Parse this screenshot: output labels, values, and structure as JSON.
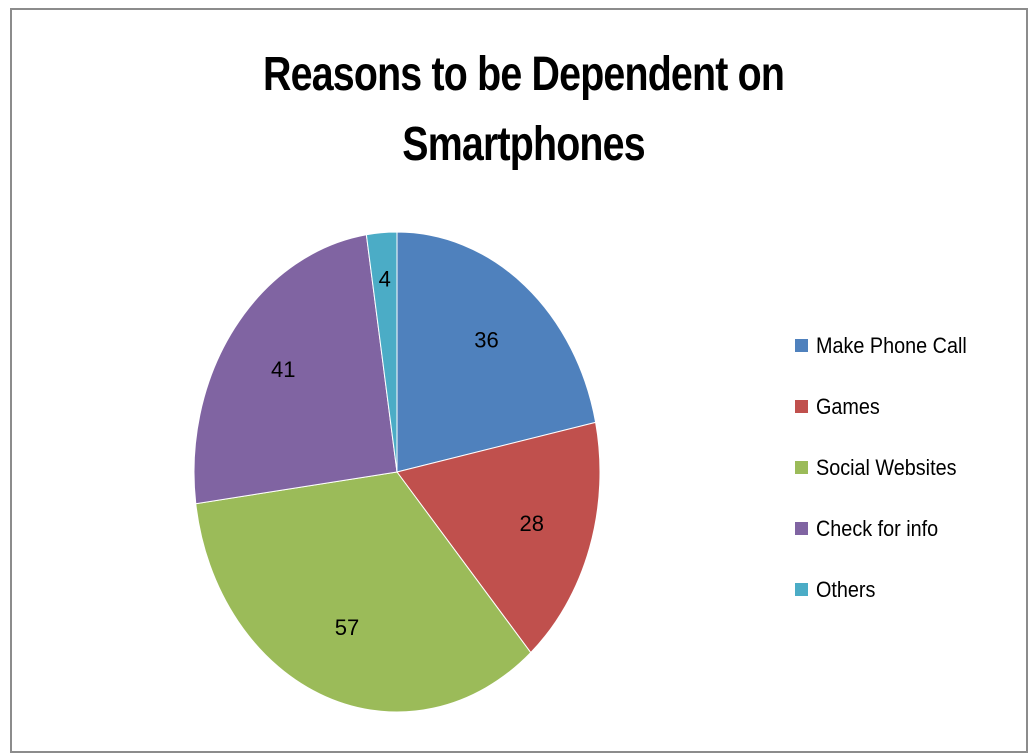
{
  "chart_data": {
    "type": "pie",
    "title": "Reasons to be Dependent on\nSmartphones",
    "categories": [
      "Make Phone Call",
      "Games",
      "Social Websites",
      "Check for info",
      "Others"
    ],
    "values": [
      36,
      28,
      57,
      41,
      4
    ],
    "colors": [
      "#4f81bd",
      "#c0504d",
      "#9bbb59",
      "#8064a2",
      "#4bacc6"
    ],
    "data_labels": [
      "36",
      "28",
      "57",
      "41",
      "4"
    ],
    "legend": {
      "position": "right",
      "entries": [
        "Make Phone Call",
        "Games",
        "Social Websites",
        "Check for info",
        "Others"
      ]
    }
  }
}
